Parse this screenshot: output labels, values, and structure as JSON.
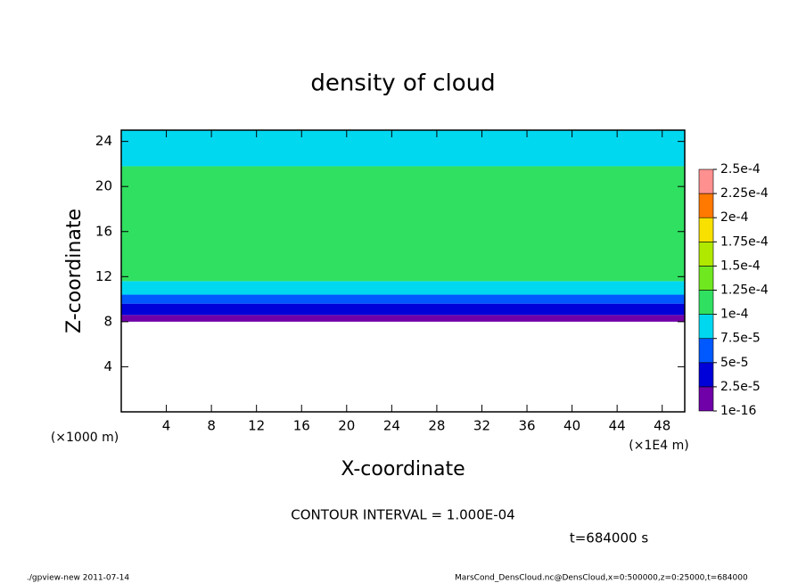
{
  "chart_data": {
    "type": "heatmap",
    "title": "density of cloud",
    "xlabel": "X-coordinate",
    "ylabel": "Z-coordinate",
    "xunit": "(×1E4 m)",
    "yunit": "(×1000 m)",
    "xlim": [
      0,
      50
    ],
    "xticks": [
      4,
      8,
      12,
      16,
      20,
      24,
      28,
      32,
      36,
      40,
      44,
      48
    ],
    "ylim": [
      0,
      25
    ],
    "yticks": [
      4,
      8,
      12,
      16,
      20,
      24
    ],
    "layers": {
      "z": [
        8,
        8.6,
        9.6,
        10.4,
        11.6,
        21.8,
        25
      ],
      "values": [
        1e-05,
        3e-05,
        6e-05,
        8.5e-05,
        0.00011,
        9e-05
      ]
    },
    "colorbar": {
      "levels": [
        {
          "value": 1e-16,
          "label": "1e-16"
        },
        {
          "value": 2.5e-05,
          "label": "2.5e-5"
        },
        {
          "value": 5e-05,
          "label": "5e-5"
        },
        {
          "value": 7.5e-05,
          "label": "7.5e-5"
        },
        {
          "value": 0.0001,
          "label": "1e-4"
        },
        {
          "value": 0.000125,
          "label": "1.25e-4"
        },
        {
          "value": 0.00015,
          "label": "1.5e-4"
        },
        {
          "value": 0.000175,
          "label": "1.75e-4"
        },
        {
          "value": 0.0002,
          "label": "2e-4"
        },
        {
          "value": 0.000225,
          "label": "2.25e-4"
        },
        {
          "value": 0.00025,
          "label": "2.5e-4"
        }
      ],
      "colors": [
        "#7000a8",
        "#0000d8",
        "#0058ff",
        "#00d8f0",
        "#30e060",
        "#70e820",
        "#b0e800",
        "#f8e000",
        "#ff7800",
        "#ff9090"
      ]
    },
    "contour_interval": "CONTOUR INTERVAL = 1.000E-04",
    "time": "t=684000 s",
    "footer_left": "./gpview-new  2011-07-14",
    "footer_right": "MarsCond_DensCloud.nc@DensCloud,x=0:500000,z=0:25000,t=684000"
  }
}
